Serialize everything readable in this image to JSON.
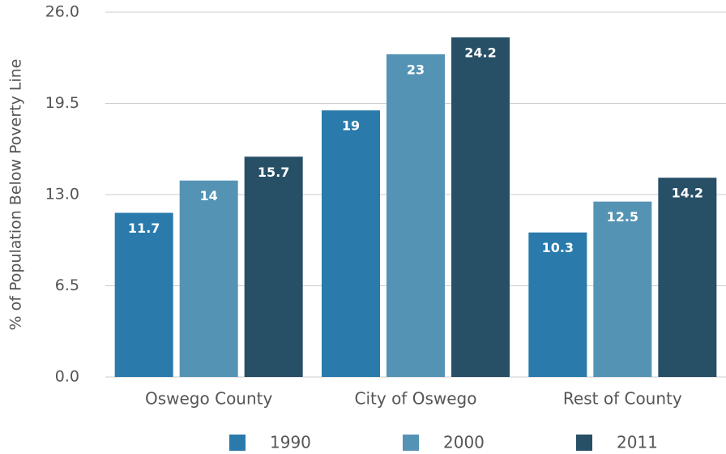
{
  "chart_data": {
    "type": "bar",
    "y_label": "% of Population Below Poverty Line",
    "categories": [
      "Oswego County",
      "City of Oswego",
      "Rest of County"
    ],
    "series": [
      {
        "name": "1990",
        "color": "#2a7aab",
        "values": [
          11.7,
          19,
          10.3
        ]
      },
      {
        "name": "2000",
        "color": "#5593b5",
        "values": [
          14,
          23,
          12.5
        ]
      },
      {
        "name": "2011",
        "color": "#274f66",
        "values": [
          15.7,
          24.2,
          14.2
        ]
      }
    ],
    "ylim": [
      0,
      26
    ],
    "yticks": [
      {
        "value": 0,
        "label": "0.0"
      },
      6.5,
      {
        "value": 13,
        "label": "13.0"
      },
      19.5,
      {
        "value": 26,
        "label": "26.0"
      }
    ],
    "grid": true
  }
}
